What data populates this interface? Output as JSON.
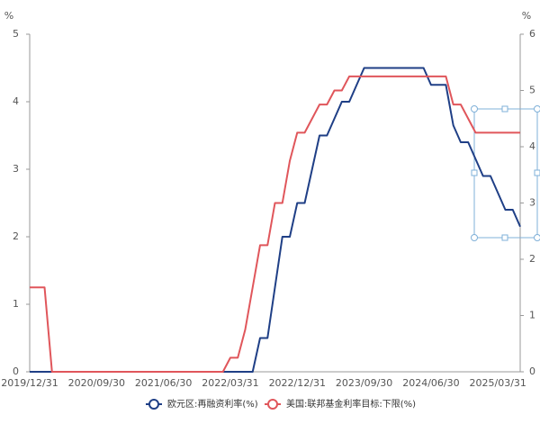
{
  "chart_data": {
    "type": "line",
    "y_label": "%",
    "y2_label": "%",
    "categories": [
      "2019/12/31",
      null,
      null,
      null,
      null,
      null,
      null,
      null,
      null,
      "2020/09/30",
      null,
      null,
      null,
      null,
      null,
      null,
      null,
      null,
      "2021/06/30",
      null,
      null,
      null,
      null,
      null,
      null,
      null,
      null,
      "2022/03/31",
      null,
      null,
      null,
      null,
      null,
      null,
      null,
      null,
      "2022/12/31",
      null,
      null,
      null,
      null,
      null,
      null,
      null,
      null,
      "2023/09/30",
      null,
      null,
      null,
      null,
      null,
      null,
      null,
      null,
      "2024/06/30",
      null,
      null,
      null,
      null,
      null,
      null,
      null,
      null,
      "2025/03/31",
      null,
      null,
      null
    ],
    "series": [
      {
        "name": "欧元区:再融资利率(%)",
        "color": "#1f3f86",
        "axis": "y",
        "values": [
          0,
          0,
          0,
          0,
          0,
          0,
          0,
          0,
          0,
          0,
          0,
          0,
          0,
          0,
          0,
          0,
          0,
          0,
          0,
          0,
          0,
          0,
          0,
          0,
          0,
          0,
          0,
          0,
          0,
          0,
          0,
          0.5,
          0.5,
          1.25,
          2.0,
          2.0,
          2.5,
          2.5,
          3.0,
          3.5,
          3.5,
          3.75,
          4.0,
          4.0,
          4.25,
          4.5,
          4.5,
          4.5,
          4.5,
          4.5,
          4.5,
          4.5,
          4.5,
          4.5,
          4.25,
          4.25,
          4.25,
          3.65,
          3.4,
          3.4,
          3.15,
          2.9,
          2.9,
          2.65,
          2.4,
          2.4,
          2.15
        ]
      },
      {
        "name": "美国:联邦基金利率目标:下限(%)",
        "color": "#e0565b",
        "axis": "y2",
        "values": [
          1.5,
          1.5,
          1.5,
          0,
          0,
          0,
          0,
          0,
          0,
          0,
          0,
          0,
          0,
          0,
          0,
          0,
          0,
          0,
          0,
          0,
          0,
          0,
          0,
          0,
          0,
          0,
          0,
          0.25,
          0.25,
          0.75,
          1.5,
          2.25,
          2.25,
          3.0,
          3.0,
          3.75,
          4.25,
          4.25,
          4.5,
          4.75,
          4.75,
          5.0,
          5.0,
          5.25,
          5.25,
          5.25,
          5.25,
          5.25,
          5.25,
          5.25,
          5.25,
          5.25,
          5.25,
          5.25,
          5.25,
          5.25,
          5.25,
          4.75,
          4.75,
          4.5,
          4.25,
          4.25,
          4.25,
          4.25,
          4.25,
          4.25,
          4.25
        ]
      }
    ],
    "ylim": [
      0,
      5
    ],
    "yticks": [
      0,
      1,
      2,
      3,
      4,
      5
    ],
    "y2lim": [
      0,
      6
    ],
    "y2ticks": [
      0,
      1,
      2,
      3,
      4,
      5,
      6
    ],
    "legend": "bottom"
  }
}
